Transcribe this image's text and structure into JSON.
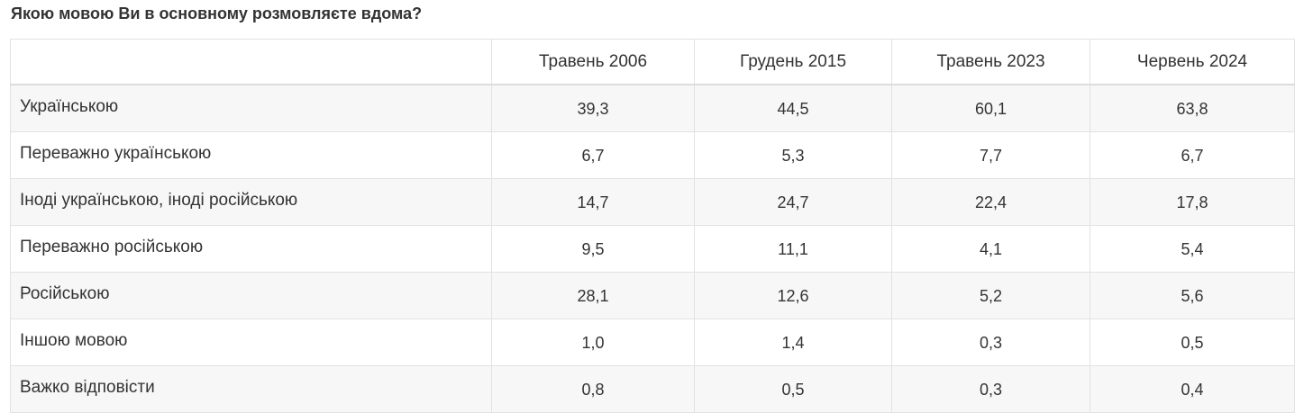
{
  "title": "Якою мовою Ви в основному розмовляєте вдома?",
  "table": {
    "corner": "",
    "columns": [
      "Травень 2006",
      "Грудень 2015",
      "Травень 2023",
      "Червень 2024"
    ],
    "rows": [
      {
        "label": "Українською",
        "values": [
          "39,3",
          "44,5",
          "60,1",
          "63,8"
        ]
      },
      {
        "label": "Переважно українською",
        "values": [
          "6,7",
          "5,3",
          "7,7",
          "6,7"
        ]
      },
      {
        "label": "Іноді українською, іноді російською",
        "values": [
          "14,7",
          "24,7",
          "22,4",
          "17,8"
        ]
      },
      {
        "label": "Переважно російською",
        "values": [
          "9,5",
          "11,1",
          "4,1",
          "5,4"
        ]
      },
      {
        "label": "Російською",
        "values": [
          "28,1",
          "12,6",
          "5,2",
          "5,6"
        ]
      },
      {
        "label": "Іншою мовою",
        "values": [
          "1,0",
          "1,4",
          "0,3",
          "0,5"
        ]
      },
      {
        "label": "Важко відповісти",
        "values": [
          "0,8",
          "0,5",
          "0,3",
          "0,4"
        ]
      }
    ]
  }
}
